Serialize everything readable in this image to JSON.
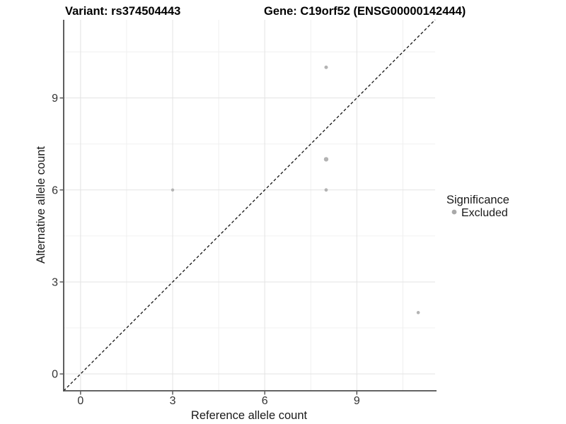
{
  "chart_data": {
    "type": "scatter",
    "title_left": "Variant: rs374504443",
    "title_right": "Gene: C19orf52 (ENSG00000142444)",
    "xlabel": "Reference allele count",
    "ylabel": "Alternative allele count",
    "xlim": [
      -0.55,
      11.55
    ],
    "ylim": [
      -0.55,
      11.55
    ],
    "xticks": [
      0,
      3,
      6,
      9
    ],
    "yticks": [
      0,
      3,
      6,
      9
    ],
    "x_minor_gridlines": [
      1.5,
      4.5,
      7.5,
      10.5
    ],
    "y_minor_gridlines": [
      1.5,
      4.5,
      7.5,
      10.5
    ],
    "grid": true,
    "identity_line": {
      "style": "dashed",
      "slope": 1,
      "intercept": 0,
      "color": "#111111"
    },
    "series": [
      {
        "name": "Excluded",
        "color": "#b3b3b3",
        "points": [
          {
            "x": 3,
            "y": 6,
            "r": 2.2
          },
          {
            "x": 8,
            "y": 6,
            "r": 2.4
          },
          {
            "x": 8,
            "y": 7,
            "r": 3.2
          },
          {
            "x": 8,
            "y": 10,
            "r": 2.5
          },
          {
            "x": 11,
            "y": 2,
            "r": 2.3
          }
        ]
      }
    ],
    "legend": {
      "title": "Significance",
      "position": "right",
      "items": [
        {
          "label": "Excluded",
          "color": "#a9a9a9"
        }
      ]
    },
    "colors": {
      "background": "#ffffff",
      "major_grid": "#e3e3e3",
      "minor_grid": "#f0f0f0",
      "axis_line": "#4d4d4d",
      "tick_text": "#333333",
      "excluded_point": "#b3b3b3"
    }
  }
}
